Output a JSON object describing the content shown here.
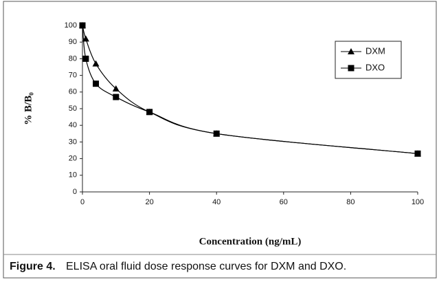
{
  "chart_data": {
    "type": "line",
    "x_label": "Concentration (ng/mL)",
    "y_label": "% B/B₀",
    "caption_label": "Figure 4.",
    "caption": "ELISA oral fluid dose response curves for DXM and DXO.",
    "x": [
      0,
      1,
      4,
      10,
      20,
      40,
      100
    ],
    "series": [
      {
        "name": "DXM",
        "color": "#000000",
        "marker": "triangle",
        "values": [
          100,
          92,
          77,
          62,
          48,
          35,
          23
        ]
      },
      {
        "name": "DXO",
        "color": "#000000",
        "marker": "square",
        "values": [
          100,
          80,
          65,
          57,
          48,
          35,
          23
        ]
      }
    ],
    "xlim": [
      0,
      100
    ],
    "xticks": [
      0,
      20,
      40,
      60,
      80,
      100
    ],
    "ylim": [
      0,
      100
    ],
    "yticks": [
      0,
      10,
      20,
      30,
      40,
      50,
      60,
      70,
      80,
      90,
      100
    ],
    "grid": false,
    "legend": "top-right"
  }
}
